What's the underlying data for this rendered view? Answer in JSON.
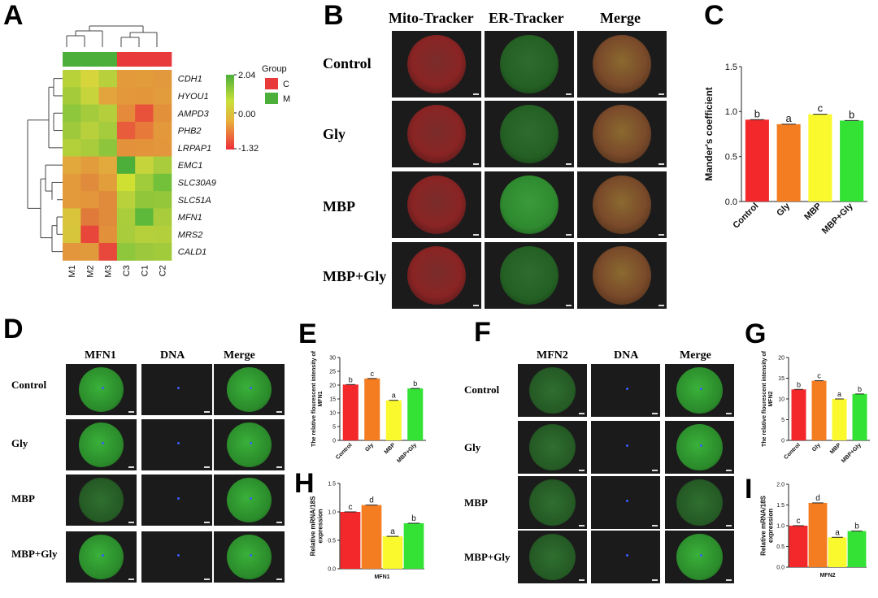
{
  "panel_labels": {
    "a": "A",
    "b": "B",
    "c": "C",
    "d": "D",
    "e": "E",
    "f": "F",
    "g": "G",
    "h": "H",
    "i": "I"
  },
  "heatmap": {
    "columns": [
      "M1",
      "M2",
      "M3",
      "C3",
      "C1",
      "C2"
    ],
    "genes": [
      "CDH1",
      "HYOU1",
      "AMPD3",
      "PHB2",
      "LRPAP1",
      "EMC1",
      "SLC30A9",
      "SLC51A",
      "MFN1",
      "MRS2",
      "CALD1"
    ],
    "group_colors": [
      "#4caf3a",
      "#4caf3a",
      "#4caf3a",
      "#e8393b",
      "#e8393b",
      "#e8393b"
    ],
    "cell_colors": [
      [
        "#b8d23a",
        "#d6d63c",
        "#b7d03c",
        "#e39a3a",
        "#e29c3a",
        "#e2983c"
      ],
      [
        "#a4cc3a",
        "#c7d43c",
        "#e3a33d",
        "#e3983b",
        "#e3963a",
        "#e39c3c"
      ],
      [
        "#8ec63c",
        "#a3cb3c",
        "#b5cf3c",
        "#e58a3b",
        "#e8523b",
        "#e3903b"
      ],
      [
        "#9ec93a",
        "#b8d03c",
        "#a4cc3c",
        "#e85b3b",
        "#e77a3b",
        "#e3983b"
      ],
      [
        "#b3cf3a",
        "#a9cc3c",
        "#8dc63c",
        "#e3913b",
        "#e3943b",
        "#e3963b"
      ],
      [
        "#e2a83c",
        "#e29c3c",
        "#e2aa3c",
        "#4caf3a",
        "#c6d43c",
        "#a9cc3c"
      ],
      [
        "#e39a3b",
        "#e08b3b",
        "#e39e3c",
        "#cfe032",
        "#a0cb3a",
        "#73c03a"
      ],
      [
        "#e39a3b",
        "#e3963b",
        "#e08a3b",
        "#b9d23b",
        "#92c63a",
        "#95c73a"
      ],
      [
        "#d9c43c",
        "#e07a3b",
        "#e08a3b",
        "#aacd3c",
        "#5cb93a",
        "#a8cc3c"
      ],
      [
        "#d7c63c",
        "#e8463b",
        "#e3903b",
        "#a9cc3c",
        "#b6d03c",
        "#b4cf3c"
      ],
      [
        "#e3963c",
        "#e09a3c",
        "#e8483b",
        "#8ec63c",
        "#9bc83c",
        "#a2cb3c"
      ]
    ],
    "legend": {
      "max": "2.04",
      "mid": "0.00",
      "min": "-1.32"
    },
    "group_legend": {
      "title": "Group",
      "items": [
        {
          "label": "C",
          "color": "#e8393b"
        },
        {
          "label": "M",
          "color": "#4caf3a"
        }
      ]
    }
  },
  "panel_b": {
    "columns": [
      "Mito-Tracker",
      "ER-Tracker",
      "Merge"
    ],
    "rows": [
      "Control",
      "Gly",
      "MBP",
      "MBP+Gly"
    ]
  },
  "panel_d": {
    "columns": [
      "MFN1",
      "DNA",
      "Merge"
    ],
    "rows": [
      "Control",
      "Gly",
      "MBP",
      "MBP+Gly"
    ]
  },
  "panel_f": {
    "columns": [
      "MFN2",
      "DNA",
      "Merge"
    ],
    "rows": [
      "Control",
      "Gly",
      "MBP",
      "MBP+Gly"
    ]
  },
  "bar_colors": [
    "#f2282a",
    "#f47d22",
    "#f9f92e",
    "#33e235"
  ],
  "chart_data": [
    {
      "id": "C",
      "type": "bar",
      "categories": [
        "Control",
        "Gly",
        "MBP",
        "MBP+Gly"
      ],
      "values": [
        0.91,
        0.86,
        0.97,
        0.9
      ],
      "letters": [
        "b",
        "a",
        "c",
        "b"
      ],
      "ylabel": "Mander's coefficient",
      "ylim": [
        0,
        1.5
      ],
      "yticks": [
        "0.0",
        "0.5",
        "1.0",
        "1.5"
      ]
    },
    {
      "id": "E",
      "type": "bar",
      "categories": [
        "Control",
        "Gly",
        "MBP",
        "MBP+Gly"
      ],
      "values": [
        20.2,
        22.4,
        14.5,
        18.8
      ],
      "letters": [
        "b",
        "c",
        "a",
        "b"
      ],
      "ylabel": "The relative flourescent intensity of MFN1",
      "ylim": [
        0,
        30
      ],
      "yticks": [
        "0",
        "5",
        "10",
        "15",
        "20",
        "25",
        "30"
      ]
    },
    {
      "id": "G",
      "type": "bar",
      "categories": [
        "Control",
        "Gly",
        "MBP",
        "MBP+Gly"
      ],
      "values": [
        12.3,
        14.4,
        10.0,
        11.2
      ],
      "letters": [
        "b",
        "c",
        "a",
        "b"
      ],
      "ylabel": "The relative flourescent intensity of MFN2",
      "ylim": [
        0,
        20
      ],
      "yticks": [
        "0",
        "5",
        "10",
        "15",
        "20"
      ]
    },
    {
      "id": "H",
      "type": "bar",
      "categories": [
        "Control",
        "Gly",
        "MBP",
        "MBP+Gly"
      ],
      "values": [
        1.0,
        1.12,
        0.57,
        0.8
      ],
      "letters": [
        "c",
        "d",
        "a",
        "b"
      ],
      "ylabel": "Relative mRNA/18S expression",
      "xlabel": "MFN1",
      "ylim": [
        0,
        1.5
      ],
      "yticks": [
        "0.0",
        "0.5",
        "1.0",
        "1.5"
      ]
    },
    {
      "id": "I",
      "type": "bar",
      "categories": [
        "Control",
        "Gly",
        "MBP",
        "MBP+Gly"
      ],
      "values": [
        1.0,
        1.55,
        0.72,
        0.87
      ],
      "letters": [
        "c",
        "d",
        "a",
        "b"
      ],
      "ylabel": "Relative mRNA/18S expression",
      "xlabel": "MFN2",
      "ylim": [
        0,
        2.0
      ],
      "yticks": [
        "0.0",
        "0.5",
        "1.0",
        "1.5",
        "2.0"
      ]
    }
  ]
}
